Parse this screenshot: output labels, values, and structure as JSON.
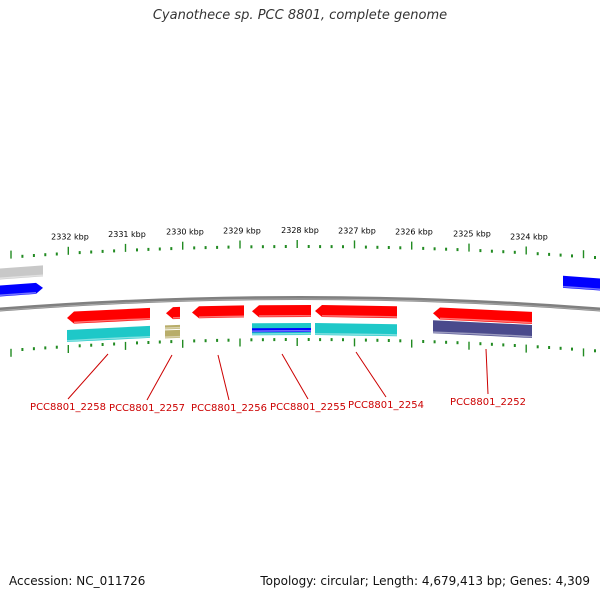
{
  "title": "Cyanothece sp. PCC 8801, complete genome",
  "footer": {
    "accession": "Accession: NC_011726",
    "summary": "Topology: circular; Length: 4,679,413 bp; Genes: 4,309"
  },
  "colors": {
    "background": "#ffffff",
    "backbone": "#808080",
    "tick": "#228b22",
    "kbp_text": "#000000",
    "gene_forward": "#0000ff",
    "gene_reverse": "#ff0000",
    "feature_cyan": "#1ec8c8",
    "feature_khaki": "#b8ad6a",
    "feature_navy": "#4a4a8c",
    "feature_grey": "#c8c8c8",
    "locus_label": "#cc0000"
  },
  "kbp_labels": [
    "2332 kbp",
    "2331 kbp",
    "2330 kbp",
    "2329 kbp",
    "2328 kbp",
    "2327 kbp",
    "2326 kbp",
    "2325 kbp",
    "2324 kbp"
  ],
  "loci": [
    {
      "label": "PCC8801_2258"
    },
    {
      "label": "PCC8801_2257"
    },
    {
      "label": "PCC8801_2256"
    },
    {
      "label": "PCC8801_2255"
    },
    {
      "label": "PCC8801_2254"
    },
    {
      "label": "PCC8801_2252"
    }
  ]
}
